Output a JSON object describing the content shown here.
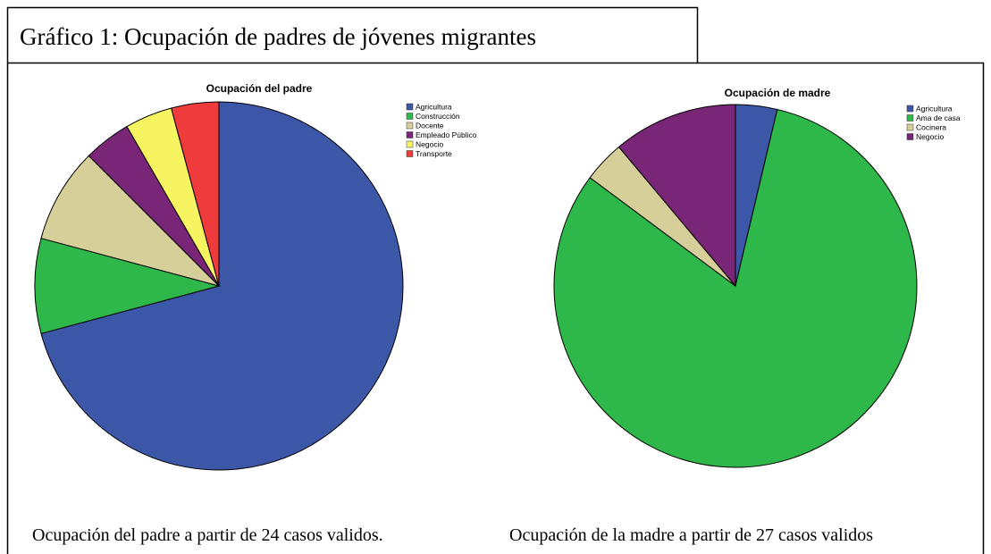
{
  "title": "Gráfico 1: Ocupación de padres de jóvenes migrantes",
  "chart_data": [
    {
      "type": "pie",
      "title": "Ocupación del padre",
      "categories": [
        "Agricultura",
        "Construcción",
        "Docente",
        "Empleado Público",
        "Negocio",
        "Transporte"
      ],
      "values": [
        17,
        2,
        2,
        1,
        1,
        1
      ],
      "colors": [
        "#3c57a8",
        "#2fb84a",
        "#d6cf9a",
        "#7a2678",
        "#f7f462",
        "#ef3b3b"
      ],
      "caption": "Ocupación del padre a partir de 24 casos validos."
    },
    {
      "type": "pie",
      "title": "Ocupación de madre",
      "categories": [
        "Agricultura",
        "Ama de casa",
        "Cocinera",
        "Negocio"
      ],
      "values": [
        1,
        22,
        1,
        3
      ],
      "colors": [
        "#3c57a8",
        "#2fb84a",
        "#d6cf9a",
        "#7a2678"
      ],
      "caption": "Ocupación de la madre a partir de 27 casos validos"
    }
  ]
}
